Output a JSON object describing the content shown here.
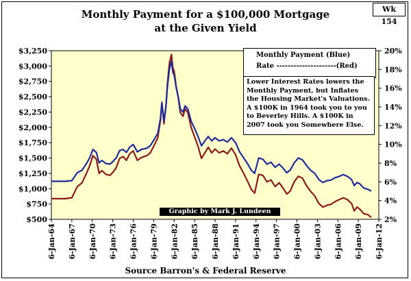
{
  "header": {
    "title_line1": "Monthly Payment for a $100,000 Mortgage",
    "title_line2": "at the Given Yield",
    "week_badge": "Wk 154"
  },
  "legend": {
    "line1": "Monthly Payment (Blue)",
    "line2": "Rate ---------------------(Red)"
  },
  "note": "Lower Interest Rates lowers the Monthly Payment, but Inflates the Housing Market's Valuations.  A $100K in 1964 took you to you to Beverley Hills.  A $100K in 2007 took you Somewhere Else.",
  "credit": "Graphic by Mark J. Lundeen",
  "source": "Source Barron's & Federal Reserve",
  "colors": {
    "plot_bg": "#ffffcc",
    "payment_line": "#1f2a9e",
    "rate_line": "#8b1a1a"
  },
  "chart_data": {
    "type": "line",
    "title": "Monthly Payment for a $100,000 Mortgage at the Given Yield",
    "x_tick_labels": [
      "6-Jan-64",
      "6-Jan-67",
      "6-Jan-70",
      "6-Jan-73",
      "6-Jan-76",
      "6-Jan-79",
      "6-Jan-82",
      "6-Jan-85",
      "6-Jan-88",
      "6-Jan-91",
      "6-Jan-94",
      "6-Jan-97",
      "6-Jan-00",
      "6-Jan-03",
      "6-Jan-06",
      "6-Jan-09",
      "6-Jan-12"
    ],
    "x_range": [
      1964,
      2012
    ],
    "y_left_ticks": [
      "$500",
      "$750",
      "$1,000",
      "$1,250",
      "$1,500",
      "$1,750",
      "$2,000",
      "$2,250",
      "$2,500",
      "$2,750",
      "$3,000",
      "$3,250"
    ],
    "y_left_range": [
      500,
      3250
    ],
    "y_right_ticks": [
      "2%",
      "4%",
      "6%",
      "8%",
      "10%",
      "12%",
      "14%",
      "16%",
      "18%",
      "20%"
    ],
    "y_right_range": [
      2,
      20
    ],
    "grid": false,
    "series": [
      {
        "name": "Monthly Payment",
        "axis": "left",
        "x": [
          1964.0,
          1965.0,
          1966.0,
          1967.0,
          1967.8,
          1968.5,
          1969.2,
          1969.6,
          1970.1,
          1970.6,
          1971.0,
          1971.4,
          1972.0,
          1972.6,
          1973.0,
          1973.5,
          1974.0,
          1974.5,
          1975.0,
          1975.5,
          1976.0,
          1976.6,
          1977.2,
          1978.0,
          1978.5,
          1979.0,
          1979.6,
          1980.0,
          1980.2,
          1980.5,
          1980.8,
          1981.0,
          1981.3,
          1981.6,
          1981.8,
          1982.0,
          1982.3,
          1982.6,
          1982.9,
          1983.3,
          1983.6,
          1984.0,
          1984.5,
          1985.0,
          1985.5,
          1986.0,
          1986.5,
          1987.0,
          1987.5,
          1988.0,
          1988.6,
          1989.2,
          1989.8,
          1990.4,
          1991.0,
          1991.6,
          1992.2,
          1992.8,
          1993.3,
          1993.8,
          1994.4,
          1995.0,
          1995.6,
          1996.2,
          1996.8,
          1997.4,
          1998.0,
          1998.5,
          1999.0,
          1999.6,
          2000.2,
          2000.8,
          2001.4,
          2002.0,
          2002.6,
          2003.2,
          2003.8,
          2004.4,
          2005.0,
          2005.6,
          2006.2,
          2006.8,
          2007.4,
          2008.0,
          2008.4,
          2008.8,
          2009.2,
          2009.8,
          2010.4,
          2010.9
        ],
        "values": [
          1120,
          1120,
          1120,
          1130,
          1260,
          1300,
          1420,
          1500,
          1640,
          1590,
          1420,
          1460,
          1410,
          1400,
          1440,
          1500,
          1620,
          1640,
          1590,
          1680,
          1720,
          1600,
          1640,
          1660,
          1700,
          1790,
          1900,
          2150,
          2400,
          2100,
          2350,
          2650,
          2950,
          3080,
          2900,
          2850,
          2650,
          2500,
          2300,
          2250,
          2350,
          2300,
          2100,
          1980,
          1850,
          1700,
          1780,
          1850,
          1780,
          1830,
          1780,
          1800,
          1760,
          1830,
          1750,
          1600,
          1500,
          1400,
          1300,
          1250,
          1500,
          1480,
          1400,
          1430,
          1350,
          1400,
          1330,
          1260,
          1300,
          1420,
          1500,
          1470,
          1380,
          1300,
          1250,
          1150,
          1100,
          1130,
          1140,
          1180,
          1200,
          1230,
          1200,
          1150,
          1050,
          1100,
          1080,
          1010,
          990,
          960
        ]
      },
      {
        "name": "Rate",
        "axis": "right",
        "x": [
          1964.0,
          1965.0,
          1966.0,
          1967.0,
          1967.8,
          1968.5,
          1969.2,
          1969.6,
          1970.1,
          1970.6,
          1971.0,
          1971.4,
          1972.0,
          1972.6,
          1973.0,
          1973.5,
          1974.0,
          1974.5,
          1975.0,
          1975.5,
          1976.0,
          1976.6,
          1977.2,
          1978.0,
          1978.5,
          1979.0,
          1979.6,
          1980.0,
          1980.2,
          1980.5,
          1980.8,
          1981.0,
          1981.3,
          1981.6,
          1981.8,
          1982.0,
          1982.3,
          1982.6,
          1982.9,
          1983.3,
          1983.6,
          1984.0,
          1984.5,
          1985.0,
          1985.5,
          1986.0,
          1986.5,
          1987.0,
          1987.5,
          1988.0,
          1988.6,
          1989.2,
          1989.8,
          1990.4,
          1991.0,
          1991.6,
          1992.2,
          1992.8,
          1993.3,
          1993.8,
          1994.4,
          1995.0,
          1995.6,
          1996.2,
          1996.8,
          1997.4,
          1998.0,
          1998.5,
          1999.0,
          1999.6,
          2000.2,
          2000.8,
          2001.4,
          2002.0,
          2002.6,
          2003.2,
          2003.8,
          2004.4,
          2005.0,
          2005.6,
          2006.2,
          2006.8,
          2007.4,
          2008.0,
          2008.4,
          2008.8,
          2009.2,
          2009.8,
          2010.4,
          2010.9
        ],
        "values": [
          4.2,
          4.2,
          4.2,
          4.3,
          5.5,
          5.9,
          7.0,
          7.7,
          8.8,
          8.4,
          6.9,
          7.2,
          6.8,
          6.7,
          7.0,
          7.5,
          8.5,
          8.7,
          8.3,
          9.0,
          9.3,
          8.3,
          8.6,
          8.8,
          9.1,
          9.8,
          10.7,
          12.6,
          14.5,
          12.2,
          14.1,
          16.4,
          18.7,
          19.6,
          18.2,
          17.8,
          16.2,
          15.0,
          13.4,
          13.0,
          13.8,
          13.4,
          11.8,
          10.8,
          9.8,
          8.5,
          9.1,
          9.7,
          9.1,
          9.5,
          9.1,
          9.3,
          9.0,
          9.6,
          8.9,
          7.7,
          6.9,
          6.0,
          5.2,
          4.8,
          6.8,
          6.7,
          6.0,
          6.2,
          5.5,
          5.9,
          5.3,
          4.7,
          5.0,
          6.0,
          6.6,
          6.4,
          5.6,
          5.0,
          4.5,
          3.7,
          3.3,
          3.5,
          3.6,
          3.9,
          4.1,
          4.3,
          4.1,
          3.7,
          2.9,
          3.3,
          3.1,
          2.6,
          2.5,
          2.2
        ]
      }
    ]
  }
}
